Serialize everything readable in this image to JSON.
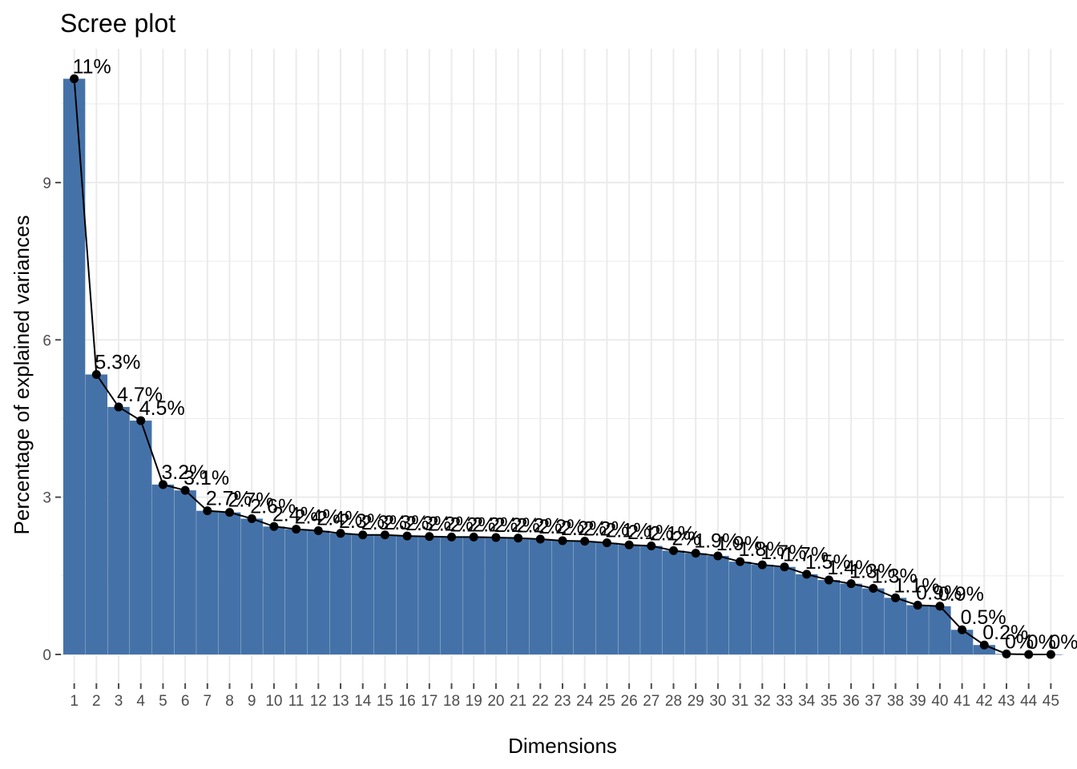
{
  "chart_data": {
    "type": "bar",
    "title": "Scree plot",
    "xlabel": "Dimensions",
    "ylabel": "Percentage of explained variances",
    "categories": [
      "1",
      "2",
      "3",
      "4",
      "5",
      "6",
      "7",
      "8",
      "9",
      "10",
      "11",
      "12",
      "13",
      "14",
      "15",
      "16",
      "17",
      "18",
      "19",
      "20",
      "21",
      "22",
      "23",
      "24",
      "25",
      "26",
      "27",
      "28",
      "29",
      "30",
      "31",
      "32",
      "33",
      "34",
      "35",
      "36",
      "37",
      "38",
      "39",
      "40",
      "41",
      "42",
      "43",
      "44",
      "45"
    ],
    "values": [
      10.98,
      5.34,
      4.72,
      4.46,
      3.24,
      3.13,
      2.74,
      2.71,
      2.59,
      2.44,
      2.39,
      2.36,
      2.31,
      2.28,
      2.28,
      2.26,
      2.25,
      2.24,
      2.24,
      2.23,
      2.22,
      2.2,
      2.17,
      2.16,
      2.13,
      2.09,
      2.07,
      1.98,
      1.93,
      1.88,
      1.77,
      1.71,
      1.67,
      1.53,
      1.42,
      1.35,
      1.26,
      1.08,
      0.94,
      0.92,
      0.47,
      0.18,
      0.01,
      0.0,
      0.0
    ],
    "labels": [
      "11%",
      "5.3%",
      "4.7%",
      "4.5%",
      "3.2%",
      "3.1%",
      "2.7%",
      "2.7%",
      "2.6%",
      "2.4%",
      "2.4%",
      "2.4%",
      "2.3%",
      "2.3%",
      "2.3%",
      "2.3%",
      "2.2%",
      "2.2%",
      "2.2%",
      "2.2%",
      "2.2%",
      "2.2%",
      "2.2%",
      "2.2%",
      "2.1%",
      "2.1%",
      "2.1%",
      "2%",
      "1.9%",
      "1.9%",
      "1.8%",
      "1.7%",
      "1.7%",
      "1.5%",
      "1.4%",
      "1.3%",
      "1.3%",
      "1.1%",
      "0.9%",
      "0.9%",
      "0.5%",
      "0.2%",
      "0%",
      "0%",
      "0%"
    ],
    "yticks": [
      "0",
      "3",
      "6",
      "9"
    ],
    "ylim": [
      -0.55,
      11.55
    ],
    "grid": true,
    "legend": "none",
    "bar_color": "#4472a8",
    "line_color": "#000000",
    "grid_color": "#ebebeb",
    "tick_color": "#4d4d4d"
  }
}
